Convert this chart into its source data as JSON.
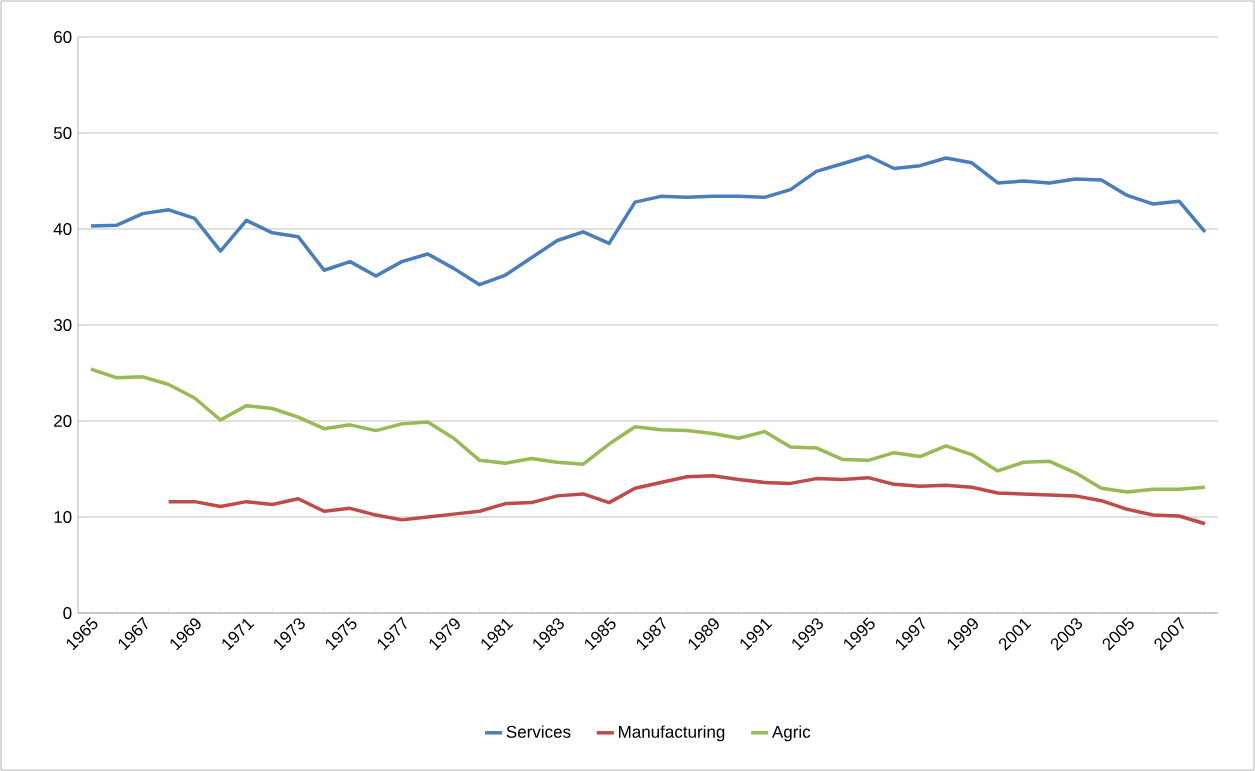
{
  "chart_data": {
    "type": "line",
    "categories": [
      "1965",
      null,
      "1967",
      null,
      "1969",
      null,
      "1971",
      null,
      "1973",
      null,
      "1975",
      null,
      "1977",
      null,
      "1979",
      null,
      "1981",
      null,
      "1983",
      null,
      "1985",
      null,
      "1987",
      null,
      "1989",
      null,
      "1991",
      null,
      "1993",
      null,
      "1995",
      null,
      "1997",
      null,
      "1999",
      null,
      "2001",
      null,
      "2003",
      null,
      "2005",
      null,
      "2007",
      null
    ],
    "series": [
      {
        "name": "Services",
        "color": "#4a7ebb",
        "values": [
          40.3,
          40.4,
          41.6,
          42.0,
          41.1,
          37.7,
          40.9,
          39.6,
          39.2,
          35.7,
          36.6,
          35.1,
          36.6,
          37.4,
          35.9,
          34.2,
          35.2,
          37.0,
          38.8,
          39.7,
          38.5,
          42.8,
          43.4,
          43.3,
          43.4,
          43.4,
          43.3,
          44.1,
          46.0,
          46.8,
          47.6,
          46.3,
          46.6,
          47.4,
          46.9,
          44.8,
          45.0,
          44.8,
          45.2,
          45.1,
          43.5,
          42.6,
          42.9,
          39.7
        ]
      },
      {
        "name": "Manufacturing",
        "color": "#be4b48",
        "values": [
          null,
          null,
          null,
          11.6,
          11.6,
          11.1,
          11.6,
          11.3,
          11.9,
          10.6,
          10.9,
          10.2,
          9.7,
          10.0,
          10.3,
          10.6,
          11.4,
          11.5,
          12.2,
          12.4,
          11.5,
          13.0,
          13.6,
          14.2,
          14.3,
          13.9,
          13.6,
          13.5,
          14.0,
          13.9,
          14.1,
          13.4,
          13.2,
          13.3,
          13.1,
          12.5,
          12.4,
          12.3,
          12.2,
          11.7,
          10.8,
          10.2,
          10.1,
          9.3
        ]
      },
      {
        "name": "Agric",
        "color": "#98b954",
        "values": [
          25.4,
          24.5,
          24.6,
          23.8,
          22.4,
          20.1,
          21.6,
          21.3,
          20.4,
          19.2,
          19.6,
          19.0,
          19.7,
          19.9,
          18.2,
          15.9,
          15.6,
          16.1,
          15.7,
          15.5,
          17.6,
          19.4,
          19.1,
          19.0,
          18.7,
          18.2,
          18.9,
          17.3,
          17.2,
          16.0,
          15.9,
          16.7,
          16.3,
          17.4,
          16.5,
          14.8,
          15.7,
          15.8,
          14.6,
          13.0,
          12.6,
          12.9,
          12.9,
          13.1
        ]
      }
    ],
    "ylim": [
      0,
      60
    ],
    "yticks": [
      0,
      10,
      20,
      30,
      40,
      50,
      60
    ],
    "grid": "y",
    "legend": "bottom"
  }
}
